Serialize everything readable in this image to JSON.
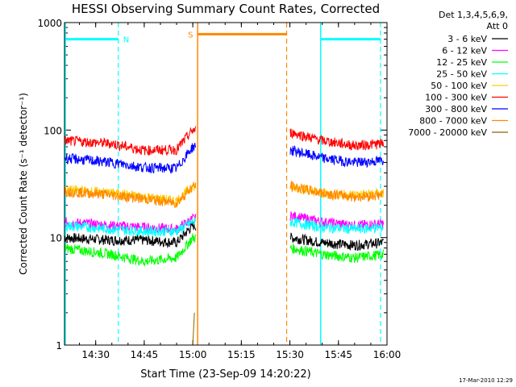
{
  "chart_data": {
    "type": "line",
    "title": "HESSI Observing Summary Count Rates, Corrected",
    "xlabel": "Start Time (23-Sep-09 14:20:22)",
    "ylabel": "Corrected Count Rate (s⁻¹ detector⁻¹)",
    "y_scale": "log",
    "ylim": [
      1,
      1000
    ],
    "xlim": [
      "14:20:22",
      "16:00:00"
    ],
    "x_ticks": [
      "14:30",
      "14:45",
      "15:00",
      "15:15",
      "15:30",
      "15:45",
      "16:00"
    ],
    "y_ticks": [
      "1",
      "10",
      "100",
      "1000"
    ],
    "legend_header": [
      "Det 1,3,4,5,6,9,",
      "Att 0"
    ],
    "legend_position": "right",
    "footer_date": "17-Mar-2010 12:29",
    "gaps": [
      [
        "15:01:00",
        "15:30:00"
      ]
    ],
    "series": [
      {
        "name": "3 - 6 keV",
        "color": "#000000",
        "x": [
          "14:20:22",
          "14:35:00",
          "14:45:00",
          "14:55:00",
          "15:00:00",
          "15:30:30",
          "15:40:00",
          "15:50:00",
          "15:59:00"
        ],
        "y": [
          10,
          9.5,
          9.5,
          9,
          13,
          10,
          9,
          8.5,
          9
        ]
      },
      {
        "name": "6 - 12 keV",
        "color": "#ff00ff",
        "x": [
          "14:20:22",
          "14:35:00",
          "14:45:00",
          "14:55:00",
          "15:00:00",
          "15:30:30",
          "15:40:00",
          "15:50:00",
          "15:59:00"
        ],
        "y": [
          14,
          13,
          12.5,
          12,
          15,
          16,
          14,
          13,
          13.5
        ]
      },
      {
        "name": "12 - 25 keV",
        "color": "#00ff00",
        "x": [
          "14:20:22",
          "14:35:00",
          "14:45:00",
          "14:55:00",
          "15:00:00",
          "15:30:30",
          "15:40:00",
          "15:50:00",
          "15:59:00"
        ],
        "y": [
          8,
          7,
          6,
          6.5,
          10,
          8,
          7,
          6.5,
          7
        ]
      },
      {
        "name": "25 - 50 keV",
        "color": "#00ffff",
        "x": [
          "14:20:22",
          "14:35:00",
          "14:45:00",
          "14:55:00",
          "15:00:00",
          "15:30:30",
          "15:40:00",
          "15:50:00",
          "15:59:00"
        ],
        "y": [
          13,
          12,
          11.5,
          11.5,
          14,
          14,
          12.5,
          12,
          12.5
        ]
      },
      {
        "name": "50 - 100 keV",
        "color": "#ffcc00",
        "x": [
          "14:20:22",
          "14:35:00",
          "14:45:00",
          "14:55:00",
          "15:00:00",
          "15:30:30",
          "15:40:00",
          "15:50:00",
          "15:59:00"
        ],
        "y": [
          28,
          26,
          24,
          22,
          30,
          30,
          26,
          25,
          26
        ]
      },
      {
        "name": "100 - 300 keV",
        "color": "#ff0000",
        "x": [
          "14:20:22",
          "14:35:00",
          "14:45:00",
          "14:55:00",
          "15:00:00",
          "15:30:30",
          "15:40:00",
          "15:50:00",
          "15:59:00"
        ],
        "y": [
          80,
          75,
          65,
          66,
          100,
          95,
          80,
          72,
          75
        ]
      },
      {
        "name": "300 - 800 keV",
        "color": "#0000ff",
        "x": [
          "14:20:22",
          "14:35:00",
          "14:45:00",
          "14:55:00",
          "15:00:00",
          "15:30:30",
          "15:40:00",
          "15:50:00",
          "15:59:00"
        ],
        "y": [
          55,
          50,
          45,
          44,
          70,
          65,
          55,
          50,
          52
        ]
      },
      {
        "name": "800 - 7000 keV",
        "color": "#ff8800",
        "x": [
          "14:20:22",
          "14:35:00",
          "14:45:00",
          "14:55:00",
          "15:00:00",
          "15:30:30",
          "15:40:00",
          "15:50:00",
          "15:59:00"
        ],
        "y": [
          27,
          25,
          23,
          21,
          30,
          30,
          26,
          24,
          25
        ]
      },
      {
        "name": "7000 - 20000 keV",
        "color": "#886600",
        "x": [
          "15:00:00",
          "15:00:30"
        ],
        "y": [
          1,
          2
        ]
      }
    ],
    "bars": [
      {
        "label": "N",
        "color": "#00ffff",
        "y": 700,
        "segments": [
          [
            "14:20:22",
            "14:37:00"
          ],
          [
            "15:39:30",
            "15:58:00"
          ]
        ],
        "dashed_at": [
          "14:37:00",
          "15:58:00"
        ],
        "solid_at": [
          "15:39:30"
        ]
      },
      {
        "label": "S",
        "color": "#ff8800",
        "y": 780,
        "segments": [
          [
            "15:01:30",
            "15:29:00"
          ]
        ],
        "solid_at": [
          "15:01:30"
        ],
        "dashed_at": [
          "15:29:00"
        ]
      }
    ]
  }
}
